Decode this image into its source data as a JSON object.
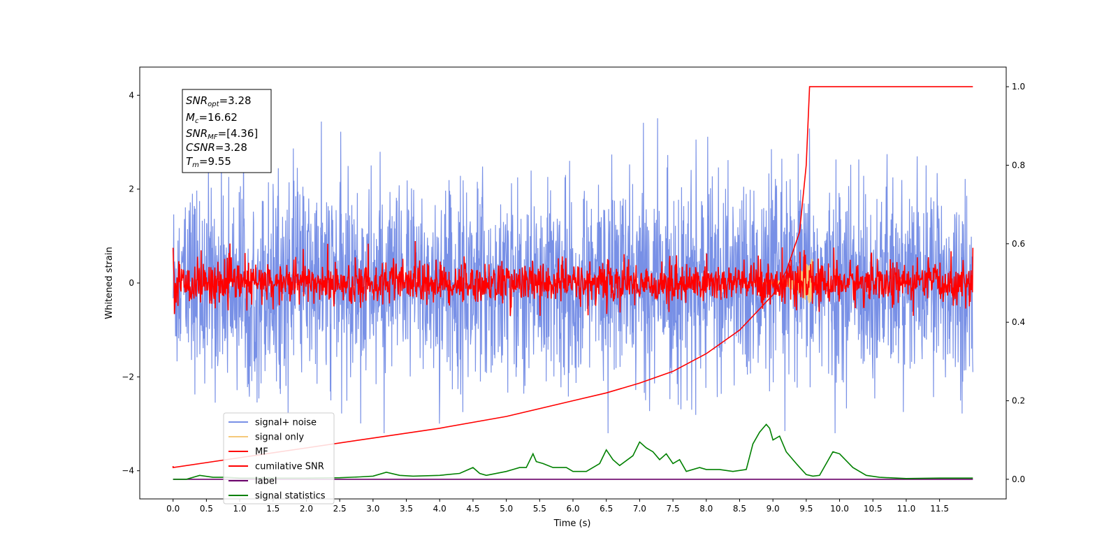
{
  "chart_data": {
    "type": "line",
    "xlabel": "Time (s)",
    "ylabel": "Whitened strain",
    "x_ticks": [
      "0.0",
      "0.5",
      "1.0",
      "1.5",
      "2.0",
      "2.5",
      "3.0",
      "3.5",
      "4.0",
      "4.5",
      "5.0",
      "5.5",
      "6.0",
      "6.5",
      "7.0",
      "7.5",
      "8.0",
      "8.5",
      "9.0",
      "9.5",
      "10.0",
      "10.5",
      "11.0",
      "11.5"
    ],
    "xlim": [
      -0.5,
      12.5
    ],
    "ylim": [
      -4.6,
      4.6
    ],
    "y_ticks": [
      "4",
      "2",
      "0",
      "−2",
      "−4"
    ],
    "y2lim": [
      -0.05,
      1.05
    ],
    "y2_ticks": [
      "1.0",
      "0.8",
      "0.6",
      "0.4",
      "0.2",
      "0.0"
    ],
    "annotation": {
      "snr_opt": {
        "sym": "SNR",
        "sub": "opt",
        "val": "=3.28"
      },
      "mc": {
        "sym": "M",
        "sub": "c",
        "val": "=16.62"
      },
      "snr_mf": {
        "sym": "SNR",
        "sub": "MF",
        "val": "=[4.36]"
      },
      "csnr": {
        "sym": "CSNR",
        "sub": "",
        "val": "=3.28"
      },
      "tm": {
        "sym": "T",
        "sub": "m",
        "val": "=9.55"
      }
    },
    "legend_position": "lower-left",
    "series": [
      {
        "name": "signal+ noise",
        "color": "#7890e6",
        "axis": "left",
        "description": "noise band spanning approx −3 to 4 over 0–12 s"
      },
      {
        "name": "signal only",
        "color": "#f5c97a",
        "axis": "left",
        "description": "short chirp near t≈9.55 s, amplitude ≈0.5"
      },
      {
        "name": "MF",
        "color": "#ff0000",
        "axis": "left",
        "description": "matched filter output, amplitude ≈0.8 around 0"
      },
      {
        "name": "cumilative SNR",
        "color": "#ff0000",
        "axis": "right",
        "x": [
          0.0,
          1.0,
          2.0,
          3.0,
          4.0,
          5.0,
          6.0,
          6.5,
          7.0,
          7.5,
          8.0,
          8.5,
          9.0,
          9.2,
          9.4,
          9.5,
          9.55,
          9.6,
          12.0
        ],
        "values": [
          0.03,
          0.055,
          0.08,
          0.105,
          0.13,
          0.16,
          0.2,
          0.22,
          0.245,
          0.275,
          0.32,
          0.38,
          0.47,
          0.53,
          0.63,
          0.8,
          1.0,
          1.0,
          1.0
        ]
      },
      {
        "name": "label",
        "color": "#6a006a",
        "axis": "right",
        "x": [
          0.0,
          12.0
        ],
        "values": [
          0.0,
          0.0
        ]
      },
      {
        "name": "signal statistics",
        "color": "#008000",
        "axis": "right",
        "x": [
          0.0,
          0.2,
          0.4,
          0.6,
          0.8,
          1.0,
          1.5,
          2.0,
          2.5,
          2.8,
          3.0,
          3.2,
          3.4,
          3.6,
          4.0,
          4.3,
          4.5,
          4.6,
          4.7,
          5.0,
          5.1,
          5.2,
          5.3,
          5.4,
          5.45,
          5.55,
          5.7,
          5.9,
          6.0,
          6.2,
          6.4,
          6.5,
          6.6,
          6.7,
          6.9,
          7.0,
          7.1,
          7.2,
          7.3,
          7.4,
          7.5,
          7.6,
          7.7,
          7.9,
          8.0,
          8.2,
          8.4,
          8.6,
          8.7,
          8.8,
          8.9,
          8.95,
          9.0,
          9.1,
          9.2,
          9.35,
          9.5,
          9.6,
          9.7,
          9.8,
          9.9,
          10.0,
          10.2,
          10.4,
          10.6,
          11.0,
          11.5,
          12.0
        ],
        "values": [
          0.0,
          0.0,
          0.01,
          0.005,
          0.005,
          0.003,
          0.003,
          0.003,
          0.004,
          0.006,
          0.008,
          0.018,
          0.01,
          0.008,
          0.01,
          0.015,
          0.03,
          0.015,
          0.01,
          0.02,
          0.025,
          0.03,
          0.03,
          0.065,
          0.045,
          0.04,
          0.03,
          0.03,
          0.02,
          0.02,
          0.04,
          0.075,
          0.05,
          0.035,
          0.06,
          0.095,
          0.08,
          0.07,
          0.05,
          0.065,
          0.04,
          0.05,
          0.02,
          0.03,
          0.025,
          0.025,
          0.02,
          0.025,
          0.09,
          0.12,
          0.14,
          0.13,
          0.1,
          0.11,
          0.07,
          0.04,
          0.012,
          0.008,
          0.01,
          0.04,
          0.07,
          0.065,
          0.03,
          0.01,
          0.005,
          0.002,
          0.003,
          0.003
        ]
      }
    ]
  }
}
